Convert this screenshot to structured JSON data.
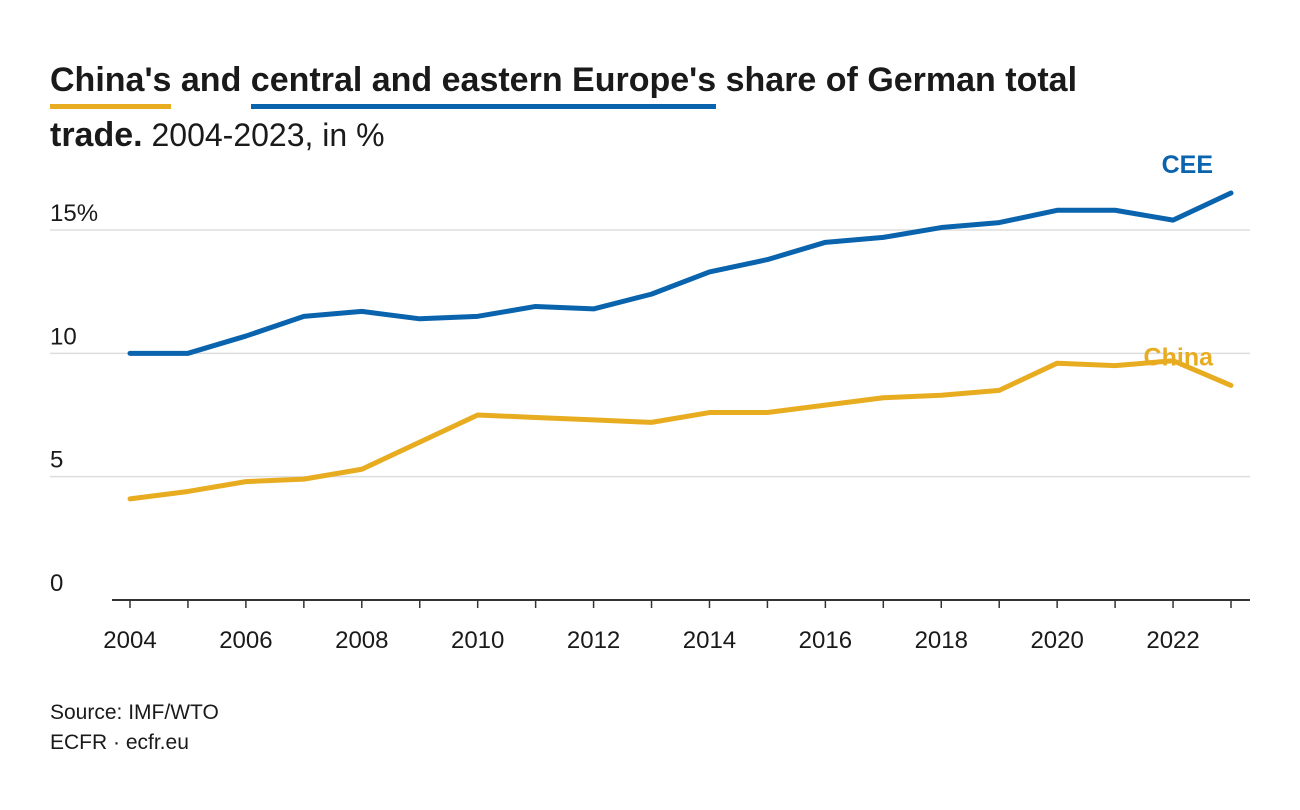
{
  "title": {
    "china_part": "China's",
    "and_1": " and ",
    "cee_part": "central and eastern Europe's",
    "rest_line1": " share of German total",
    "bold_line2": "trade.",
    "subtitle": " 2004-2023, in %"
  },
  "colors": {
    "china": "#e8ac21",
    "cee": "#0a63ad",
    "grid": "#dddddd",
    "axis": "#333333"
  },
  "chart_data": {
    "type": "line",
    "x": [
      2004,
      2005,
      2006,
      2007,
      2008,
      2009,
      2010,
      2011,
      2012,
      2013,
      2014,
      2015,
      2016,
      2017,
      2018,
      2019,
      2020,
      2021,
      2022,
      2023
    ],
    "series": [
      {
        "name": "CEE",
        "color": "#0a63ad",
        "values": [
          10.0,
          10.0,
          10.7,
          11.5,
          11.7,
          11.4,
          11.5,
          11.9,
          11.8,
          12.4,
          13.3,
          13.8,
          14.5,
          14.7,
          15.1,
          15.3,
          15.8,
          15.8,
          15.4,
          16.5
        ]
      },
      {
        "name": "China",
        "color": "#e8ac21",
        "values": [
          4.1,
          4.4,
          4.8,
          4.9,
          5.3,
          6.4,
          7.5,
          7.4,
          7.3,
          7.2,
          7.6,
          7.6,
          7.9,
          8.2,
          8.3,
          8.5,
          9.6,
          9.5,
          9.7,
          8.7
        ]
      }
    ],
    "xlim": [
      2004,
      2023
    ],
    "ylim": [
      0,
      18
    ],
    "yticks": [
      0,
      5,
      10,
      15
    ],
    "ytick_labels": [
      "0",
      "5",
      "10",
      "15%"
    ],
    "xticks": [
      2004,
      2006,
      2008,
      2010,
      2012,
      2014,
      2016,
      2018,
      2020,
      2022
    ],
    "xtick_labels": [
      "2004",
      "2006",
      "2008",
      "2010",
      "2012",
      "2014",
      "2016",
      "2018",
      "2020",
      "2022"
    ],
    "grid": true
  },
  "source": {
    "line1": "Source: IMF/WTO",
    "line2": "ECFR · ecfr.eu"
  }
}
